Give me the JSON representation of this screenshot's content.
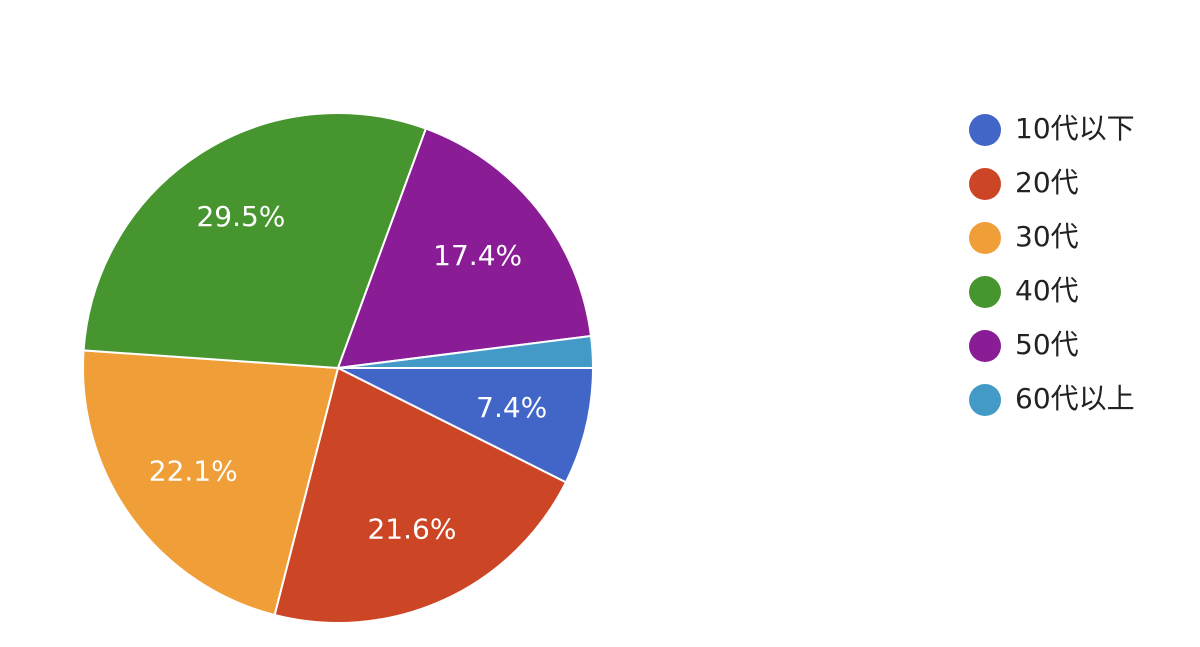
{
  "chart_data": {
    "type": "pie",
    "categories": [
      "10代以下",
      "20代",
      "30代",
      "40代",
      "50代",
      "60代以上"
    ],
    "values": [
      7.4,
      21.6,
      22.1,
      29.5,
      17.4,
      2.0
    ],
    "value_labels": [
      "7.4%",
      "21.6%",
      "22.1%",
      "29.5%",
      "17.4%",
      null
    ],
    "colors": [
      "#4266c8",
      "#cc4626",
      "#f09e38",
      "#46952f",
      "#8a1c96",
      "#449ac6"
    ],
    "legend": "right"
  }
}
